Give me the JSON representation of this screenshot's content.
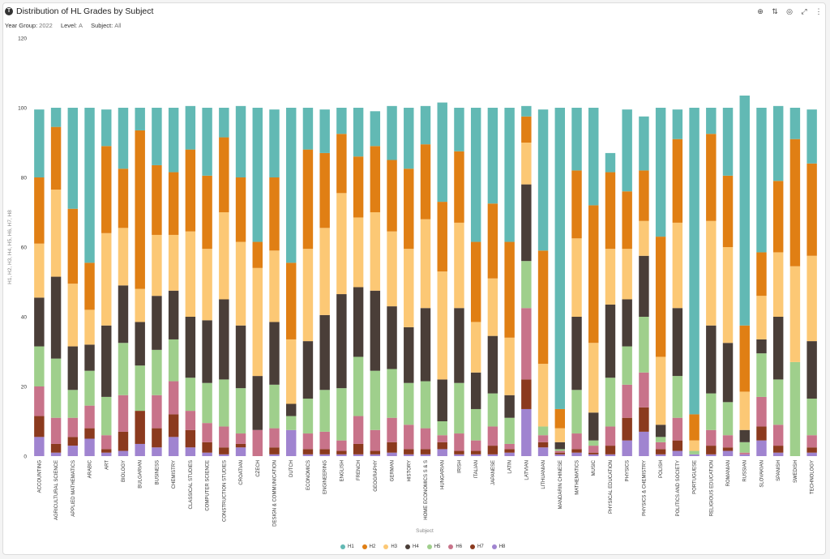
{
  "header": {
    "title": "Distribution of HL Grades by Subject",
    "app_icon": "T"
  },
  "filters": [
    {
      "label": "Year Group:",
      "value": "2022"
    },
    {
      "label": "Level:",
      "value": "A"
    },
    {
      "label": "Subject:",
      "value": "All"
    }
  ],
  "toolbar": [
    {
      "name": "globe-icon",
      "glyph": "⊕"
    },
    {
      "name": "sort-icon",
      "glyph": "⇅"
    },
    {
      "name": "target-icon",
      "glyph": "◎"
    },
    {
      "name": "expand-icon",
      "glyph": "⤢"
    },
    {
      "name": "more-icon",
      "glyph": "⋮"
    }
  ],
  "chart_data": {
    "type": "bar",
    "stacked": true,
    "title": "Distribution of HL Grades by Subject",
    "xlabel": "Subject",
    "ylabel": "H1, H2, H3, H4, H5, H6, H7, H8",
    "ylim": [
      0,
      120
    ],
    "yticks": [
      0,
      20,
      40,
      60,
      80,
      100,
      120
    ],
    "grid": false,
    "legend_position": "bottom-center",
    "categories": [
      "ACCOUNTING",
      "AGRICULTURAL SCIENCE",
      "APPLIED MATHEMATICS",
      "ARABIC",
      "ART",
      "BIOLOGY",
      "BULGARIAN",
      "BUSINESS",
      "CHEMISTRY",
      "CLASSICAL STUDIES",
      "COMPUTER SCIENCE",
      "CONSTRUCTION STUDIES",
      "CROATIAN",
      "CZECH",
      "DESIGN & COMMUNICATION",
      "DUTCH",
      "ECONOMICS",
      "ENGINEERING",
      "ENGLISH",
      "FRENCH",
      "GEOGRAPHY",
      "GERMAN",
      "HISTORY",
      "HOME ECONOMICS S & S",
      "HUNGARIAN",
      "IRISH",
      "ITALIAN",
      "JAPANESE",
      "LATIN",
      "LATVIAN",
      "LITHUANIAN",
      "MANDARIN CHINESE",
      "MATHEMATICS",
      "MUSIC",
      "PHYSICAL EDUCATION",
      "PHYSICS",
      "PHYSICS & CHEMISTRY",
      "POLISH",
      "POLITICS AND SOCIETY",
      "PORTUGUESE",
      "RELIGIOUS EDUCATION",
      "ROMANIAN",
      "RUSSIAN",
      "SLOVAKIAN",
      "SPANISH",
      "SWEDISH",
      "TECHNOLOGY"
    ],
    "series": [
      {
        "name": "H8",
        "color": "#a084d0",
        "values": [
          5.5,
          1,
          3,
          5,
          1,
          1.5,
          3.5,
          2.5,
          5.5,
          2.5,
          1,
          0.5,
          2.5,
          0,
          0.5,
          7.5,
          0.5,
          0.5,
          0.5,
          0.5,
          0.5,
          1,
          0.5,
          0.5,
          2,
          0.5,
          0.5,
          0.5,
          1,
          13.5,
          2.5,
          0.5,
          1,
          0.5,
          0.5,
          4.5,
          7,
          0.5,
          1.5,
          0.5,
          0.5,
          1.5,
          0.5,
          4.5,
          1,
          0,
          1
        ]
      },
      {
        "name": "H7",
        "color": "#8b3a1e",
        "values": [
          6,
          2.5,
          2.5,
          3,
          1,
          5.5,
          9.5,
          5.5,
          6.5,
          5,
          3,
          2,
          1,
          0,
          2,
          0,
          1.5,
          1.5,
          1,
          3,
          1,
          3,
          1.5,
          1.5,
          2,
          1,
          1,
          2.5,
          1,
          8.5,
          1.5,
          0.5,
          1,
          0.5,
          2.5,
          6.5,
          7,
          1.5,
          3,
          0,
          2.5,
          1,
          0,
          4,
          2,
          0,
          1.5
        ]
      },
      {
        "name": "H6",
        "color": "#c8738a",
        "values": [
          8.5,
          7.5,
          5.5,
          6.5,
          4,
          10.5,
          0,
          9.5,
          9.5,
          5.5,
          5.5,
          6,
          3,
          7.5,
          5.5,
          0,
          4.5,
          5,
          3,
          8,
          6,
          7,
          7,
          6,
          2,
          5,
          3,
          5.5,
          1.5,
          20.5,
          2,
          0.5,
          4.5,
          2,
          5.5,
          9.5,
          10,
          2,
          6.5,
          0,
          4.5,
          3.5,
          0.5,
          8.5,
          6,
          0,
          3.5
        ]
      },
      {
        "name": "H5",
        "color": "#9fcf8c",
        "values": [
          11.5,
          17,
          8,
          10,
          11,
          15,
          13,
          13,
          12,
          9.5,
          11.5,
          13.5,
          13,
          0,
          12.5,
          4,
          10,
          12,
          15,
          17,
          17,
          14,
          12,
          13.5,
          4,
          14.5,
          9,
          9.5,
          7.5,
          13.5,
          2.5,
          0.5,
          12.5,
          1.5,
          14,
          11,
          16,
          1.5,
          12,
          1,
          10.5,
          9.5,
          3,
          12.5,
          13,
          27,
          10.5
        ]
      },
      {
        "name": "H4",
        "color": "#4a3e38",
        "values": [
          14,
          23.5,
          12.5,
          7.5,
          20.5,
          16.5,
          12.5,
          15.5,
          14,
          17.5,
          18,
          23,
          18,
          15.5,
          18,
          3.5,
          16.5,
          21.5,
          27,
          20,
          23,
          18,
          16,
          21,
          12,
          21.5,
          10.5,
          16.5,
          6.5,
          22,
          0,
          2,
          21,
          8,
          21,
          13.5,
          17.5,
          3.5,
          19.5,
          0,
          19.5,
          17,
          3.5,
          4,
          18,
          0,
          16.5
        ]
      },
      {
        "name": "H3",
        "color": "#fcc875",
        "values": [
          15.5,
          25,
          18,
          10,
          26.5,
          16.5,
          9.5,
          17.5,
          16,
          24.5,
          20.5,
          25,
          24,
          31,
          20.5,
          18.5,
          26.5,
          25,
          29,
          20,
          22.5,
          21.5,
          22.5,
          25.5,
          31,
          24.5,
          14.5,
          16.5,
          16.5,
          12,
          18,
          4,
          22.5,
          20,
          16,
          14.5,
          10,
          19.5,
          24.5,
          3,
          30,
          27.5,
          11,
          12.5,
          18.5,
          27.5,
          24.5
        ]
      },
      {
        "name": "H2",
        "color": "#e07f14",
        "values": [
          19,
          18,
          21.5,
          13.5,
          25,
          17,
          45.5,
          20,
          18,
          23.5,
          21,
          21.5,
          18.5,
          7.5,
          21,
          22,
          28.5,
          21.5,
          17,
          17.5,
          19,
          20.5,
          23,
          21.5,
          20,
          20.5,
          23,
          21.5,
          27.5,
          7.5,
          32.5,
          5.5,
          19.5,
          39.5,
          22,
          16.5,
          14.5,
          34.5,
          24,
          7.5,
          25,
          20.5,
          19,
          12.5,
          20.5,
          36.5,
          26.5
        ]
      },
      {
        "name": "H1",
        "color": "#62b9b4",
        "values": [
          19.5,
          5.5,
          29,
          44.5,
          10.5,
          17.5,
          6.5,
          16.5,
          18.5,
          12.5,
          19.5,
          8.5,
          20.5,
          38.5,
          19.5,
          44.5,
          12,
          12.5,
          7.5,
          14,
          10,
          15.5,
          17.5,
          11,
          28.5,
          12.5,
          38.5,
          27.5,
          38.5,
          3,
          40.5,
          86.5,
          18,
          28,
          5.5,
          23.5,
          15.5,
          37,
          8.5,
          88,
          7.5,
          19.5,
          66,
          41.5,
          21.5,
          9,
          15.5
        ]
      }
    ]
  }
}
